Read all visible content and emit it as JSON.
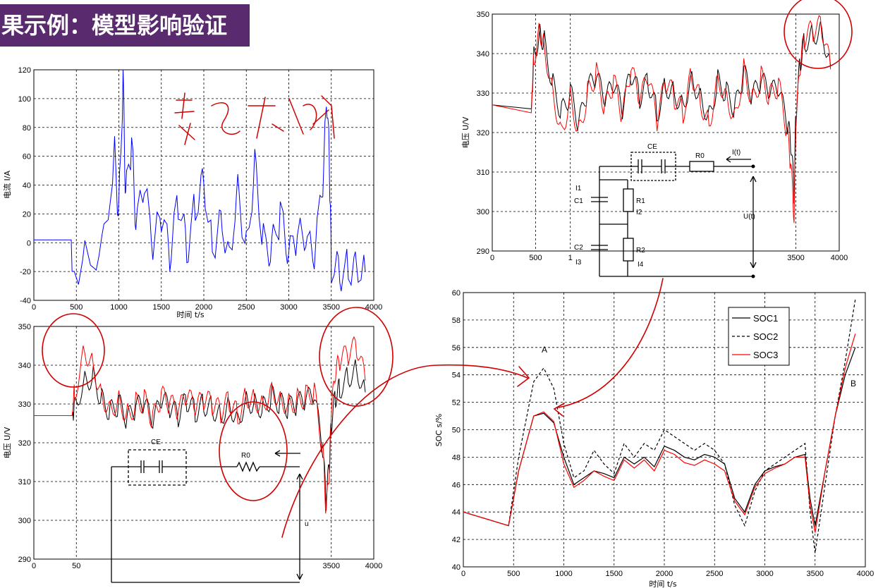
{
  "title": "果示例：模型影响验证",
  "colors": {
    "banner": "#5a2a6e",
    "blue": "#0000ff",
    "black": "#000000",
    "red": "#ff0000",
    "ink": "#d00000"
  },
  "chart_data": [
    {
      "id": "current",
      "type": "line",
      "xlabel": "时间 t/s",
      "ylabel": "电流 I/A",
      "xlim": [
        0,
        4000
      ],
      "ylim": [
        -40,
        120
      ],
      "xticks": [
        "0",
        "500",
        "1000",
        "1500",
        "2000",
        "2500",
        "3000",
        "3500",
        "4000"
      ],
      "yticks": [
        "-40",
        "-20",
        "0",
        "20",
        "40",
        "60",
        "80",
        "100",
        "120"
      ],
      "series": [
        {
          "color": "#0000ff",
          "x": [
            0,
            440,
            450,
            600,
            800,
            950,
            1000,
            1050,
            1080,
            1150,
            1200,
            1300,
            1400,
            1500,
            1600,
            1700,
            1800,
            1900,
            2000,
            2100,
            2200,
            2300,
            2400,
            2500,
            2600,
            2700,
            2800,
            2900,
            3000,
            3100,
            3200,
            3300,
            3400,
            3450,
            3480,
            3500,
            3600,
            3700,
            3800,
            3900
          ],
          "y": [
            2,
            2,
            -20,
            -10,
            -5,
            60,
            20,
            115,
            30,
            70,
            10,
            40,
            -5,
            20,
            -10,
            30,
            -5,
            25,
            45,
            -5,
            20,
            -10,
            40,
            -5,
            55,
            0,
            -5,
            20,
            -10,
            5,
            0,
            -10,
            40,
            100,
            50,
            -15,
            -20,
            -18,
            -15,
            -20
          ]
        }
      ]
    },
    {
      "id": "voltage_bottom",
      "type": "line",
      "ylabel": "电压 U/V",
      "xlim": [
        0,
        4000
      ],
      "ylim": [
        290,
        350
      ],
      "xticks": [
        "0",
        "50",
        "3500",
        "4000"
      ],
      "yticks": [
        "290",
        "300",
        "310",
        "320",
        "330",
        "340",
        "350"
      ],
      "series": [
        {
          "color": "#000000",
          "x": [
            0,
            450,
            480,
            600,
            700,
            800,
            900,
            1000,
            1100,
            1200,
            1300,
            1400,
            1500,
            1600,
            1700,
            1800,
            1900,
            2000,
            2100,
            2200,
            2300,
            2400,
            2500,
            2600,
            2700,
            2800,
            2900,
            3000,
            3100,
            3200,
            3300,
            3400,
            3440,
            3480,
            3500,
            3550,
            3600,
            3700,
            3800,
            3900
          ],
          "y": [
            327,
            327,
            330,
            336,
            337,
            331,
            328,
            330,
            326,
            329,
            330,
            325,
            331,
            329,
            327,
            331,
            328,
            330,
            329,
            327,
            330,
            326,
            331,
            330,
            329,
            332,
            330,
            329,
            330,
            331,
            332,
            318,
            305,
            315,
            325,
            332,
            334,
            337,
            339,
            333
          ]
        },
        {
          "color": "#ff0000",
          "x": [
            0,
            450,
            480,
            600,
            700,
            800,
            900,
            1000,
            1100,
            1200,
            1300,
            1400,
            1500,
            1600,
            1700,
            1800,
            1900,
            2000,
            2100,
            2200,
            2300,
            2400,
            2500,
            2600,
            2700,
            2800,
            2900,
            3000,
            3100,
            3200,
            3300,
            3400,
            3440,
            3480,
            3500,
            3550,
            3600,
            3700,
            3800,
            3900
          ],
          "y": [
            327,
            327,
            333,
            344,
            340,
            332,
            329,
            331,
            327,
            330,
            331,
            326,
            332,
            330,
            328,
            332,
            329,
            331,
            330,
            328,
            331,
            327,
            332,
            331,
            330,
            334,
            331,
            330,
            331,
            332,
            333,
            318,
            302,
            314,
            328,
            338,
            341,
            343,
            345,
            336
          ]
        }
      ]
    },
    {
      "id": "voltage_top",
      "type": "line",
      "ylabel": "电压 U/V",
      "xlim": [
        0,
        4000
      ],
      "ylim": [
        290,
        350
      ],
      "xticks": [
        "0",
        "500",
        "1",
        "3500",
        "4000"
      ],
      "yticks": [
        "290",
        "300",
        "310",
        "320",
        "330",
        "340",
        "350"
      ],
      "series": [
        {
          "color": "#000000",
          "x": [
            0,
            450,
            480,
            550,
            600,
            700,
            800,
            900,
            1000,
            1100,
            1200,
            1300,
            1400,
            1500,
            1600,
            1700,
            1800,
            1900,
            2000,
            2100,
            2200,
            2300,
            2400,
            2500,
            2600,
            2700,
            2800,
            2900,
            3000,
            3100,
            3200,
            3300,
            3400,
            3440,
            3480,
            3500,
            3550,
            3600,
            3700,
            3800,
            3900
          ],
          "y": [
            327,
            326,
            340,
            345,
            343,
            332,
            325,
            330,
            322,
            331,
            334,
            328,
            332,
            326,
            335,
            329,
            333,
            325,
            332,
            330,
            327,
            334,
            329,
            324,
            333,
            330,
            326,
            335,
            329,
            333,
            330,
            331,
            322,
            318,
            305,
            325,
            338,
            343,
            345,
            346,
            337
          ]
        },
        {
          "color": "#ff0000",
          "x": [
            0,
            450,
            480,
            550,
            600,
            700,
            800,
            900,
            1000,
            1100,
            1200,
            1300,
            1400,
            1500,
            1600,
            1700,
            1800,
            1900,
            2000,
            2100,
            2200,
            2300,
            2400,
            2500,
            2600,
            2700,
            2800,
            2900,
            3000,
            3100,
            3200,
            3300,
            3400,
            3440,
            3480,
            3500,
            3550,
            3600,
            3700,
            3800,
            3900
          ],
          "y": [
            327,
            325,
            339,
            346,
            342,
            330,
            320,
            329,
            320,
            330,
            335,
            326,
            333,
            324,
            336,
            328,
            334,
            323,
            333,
            329,
            325,
            335,
            328,
            322,
            334,
            329,
            324,
            336,
            328,
            334,
            329,
            332,
            320,
            312,
            298,
            322,
            337,
            344,
            346,
            347,
            336
          ]
        }
      ]
    },
    {
      "id": "soc",
      "type": "line",
      "xlabel": "时间 t/s",
      "ylabel": "SOC s/%",
      "xlim": [
        0,
        4000
      ],
      "ylim": [
        40,
        60
      ],
      "xticks": [
        "0",
        "500",
        "1000",
        "1500",
        "2000",
        "2500",
        "3000",
        "3500",
        "4000"
      ],
      "yticks": [
        "40",
        "42",
        "44",
        "46",
        "48",
        "50",
        "52",
        "54",
        "56",
        "58",
        "60"
      ],
      "legend": [
        "SOC1",
        "SOC2",
        "SOC3"
      ],
      "annotations": [
        "A",
        "B"
      ],
      "series": [
        {
          "name": "SOC1",
          "color": "#000000",
          "dash": "",
          "x": [
            0,
            450,
            550,
            700,
            800,
            900,
            1000,
            1100,
            1200,
            1300,
            1400,
            1500,
            1600,
            1700,
            1800,
            1900,
            2000,
            2100,
            2200,
            2300,
            2400,
            2500,
            2600,
            2700,
            2800,
            2900,
            3000,
            3100,
            3200,
            3300,
            3400,
            3450,
            3500,
            3600,
            3700,
            3800,
            3900
          ],
          "y": [
            44,
            43,
            47,
            51,
            51.2,
            50.5,
            48,
            46,
            46.5,
            47,
            46.8,
            46.5,
            48,
            47.5,
            48,
            47.3,
            48.8,
            48.5,
            48,
            47.8,
            48.2,
            48,
            47.5,
            45,
            44,
            46,
            47,
            47.3,
            47.5,
            48,
            48.2,
            45,
            43,
            47,
            51,
            54,
            56
          ]
        },
        {
          "name": "SOC2",
          "color": "#000000",
          "dash": "4,3",
          "x": [
            0,
            450,
            550,
            700,
            800,
            900,
            1000,
            1100,
            1200,
            1300,
            1400,
            1500,
            1600,
            1700,
            1800,
            1900,
            2000,
            2100,
            2200,
            2300,
            2400,
            2500,
            2600,
            2700,
            2800,
            2900,
            3000,
            3100,
            3200,
            3300,
            3400,
            3450,
            3500,
            3600,
            3700,
            3800,
            3900
          ],
          "y": [
            44,
            43,
            48,
            53.5,
            54.5,
            53,
            49,
            46.5,
            47,
            48.5,
            47.5,
            46.8,
            49,
            48,
            49,
            48.5,
            50,
            49.5,
            49,
            48.5,
            49,
            48.5,
            47.5,
            44.5,
            43,
            45.5,
            47,
            47.5,
            48,
            48.5,
            49,
            44,
            41,
            46,
            51,
            55,
            59.5
          ]
        },
        {
          "name": "SOC3",
          "color": "#ff0000",
          "dash": "",
          "x": [
            0,
            450,
            550,
            700,
            800,
            900,
            1000,
            1100,
            1200,
            1300,
            1400,
            1500,
            1600,
            1700,
            1800,
            1900,
            2000,
            2100,
            2200,
            2300,
            2400,
            2500,
            2600,
            2700,
            2800,
            2900,
            3000,
            3100,
            3200,
            3300,
            3400,
            3450,
            3500,
            3600,
            3700,
            3800,
            3900
          ],
          "y": [
            44,
            43,
            47,
            51,
            51.3,
            50.6,
            47.5,
            45.8,
            46.3,
            47,
            46.6,
            46.3,
            47.8,
            47.2,
            47.8,
            47,
            48.5,
            48.2,
            47.6,
            47.4,
            47.8,
            47.5,
            47,
            44.8,
            43.8,
            45.8,
            46.8,
            47.2,
            47.5,
            48,
            48,
            44.5,
            42.5,
            47,
            51,
            54.5,
            57
          ]
        }
      ]
    }
  ],
  "circuit_top": {
    "labels": [
      "CE",
      "R0",
      "I(t)",
      "I1",
      "C1",
      "R1",
      "I2",
      "C2",
      "R2",
      "I3",
      "I4",
      "U(t)"
    ]
  },
  "circuit_bottom": {
    "labels": [
      "CE",
      "R0",
      "u"
    ]
  }
}
